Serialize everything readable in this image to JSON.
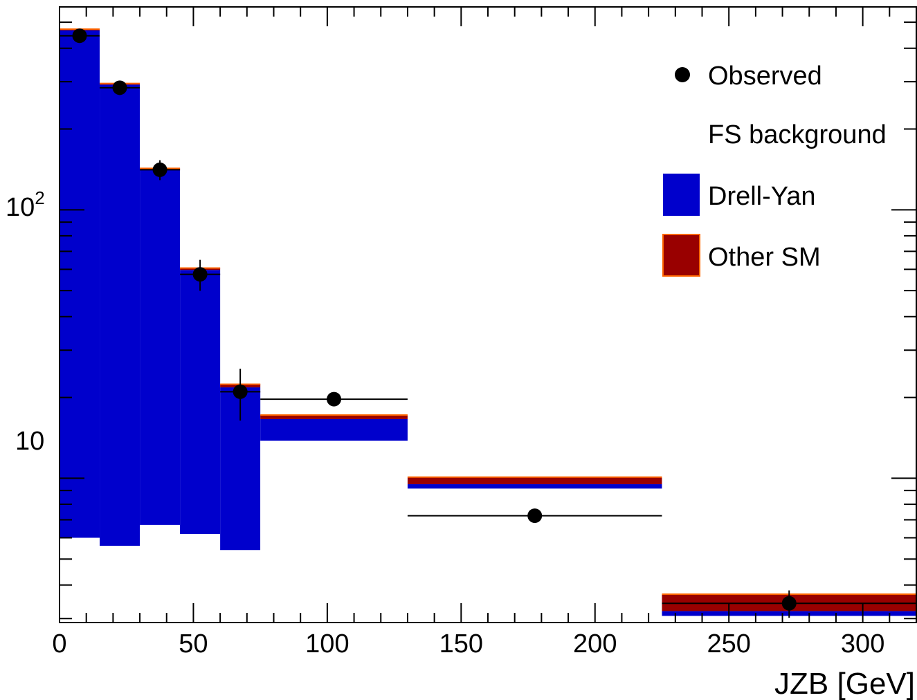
{
  "chart_data": {
    "type": "bar",
    "subtype": "stacked-histogram-with-data-points",
    "xlabel": "JZB [GeV]",
    "ylabel": "",
    "xlim": [
      0,
      320
    ],
    "ylim": [
      2.9,
      570
    ],
    "yscale": "log",
    "grid": false,
    "legend_position": "top-right",
    "x_ticks": [
      0,
      50,
      100,
      150,
      200,
      250,
      300
    ],
    "x_tick_labels": [
      "0",
      "50",
      "100",
      "150",
      "200",
      "250",
      "300"
    ],
    "y_ticks": [
      10,
      100
    ],
    "y_tick_labels": {
      "base": "10",
      "exponent": "2",
      "ten": "10"
    },
    "bins": [
      {
        "x0": 0,
        "x1": 15,
        "fs": 6,
        "dy": 460,
        "other": 5
      },
      {
        "x0": 15,
        "x1": 30,
        "fs": 5.6,
        "dy": 287,
        "other": 3
      },
      {
        "x0": 30,
        "x1": 45,
        "fs": 6.7,
        "dy": 134,
        "other": 2
      },
      {
        "x0": 45,
        "x1": 60,
        "fs": 6.2,
        "dy": 53.5,
        "other": 1
      },
      {
        "x0": 60,
        "x1": 75,
        "fs": 5.4,
        "dy": 16.4,
        "other": 0.6
      },
      {
        "x0": 75,
        "x1": 130,
        "fs": 13.8,
        "dy": 2.8,
        "other": 0.6
      },
      {
        "x0": 130,
        "x1": 225,
        "fs": 9.15,
        "dy": 0.35,
        "other": 0.6
      },
      {
        "x0": 225,
        "x1": 320,
        "fs": 3.07,
        "dy": 0.13,
        "other": 0.5
      }
    ],
    "series": [
      {
        "name": "Observed",
        "type": "points",
        "x": [
          7.5,
          22.5,
          37.5,
          52.5,
          67.5,
          102.5,
          177.5,
          272.5
        ],
        "y": [
          445,
          285,
          141,
          57.5,
          21,
          19.7,
          7.25,
          3.42
        ],
        "x_err": [
          7.5,
          7.5,
          7.5,
          7.5,
          7.5,
          27.5,
          47.5,
          47.5
        ],
        "y_err": [
          21,
          17,
          12,
          7.6,
          4.6,
          1.0,
          0.4,
          0.4
        ]
      },
      {
        "name": "FS background",
        "color": "#ffffff"
      },
      {
        "name": "Drell-Yan",
        "color": "#0000cc"
      },
      {
        "name": "Other SM",
        "color": "#990000",
        "edge_color": "#ff6600"
      }
    ]
  }
}
